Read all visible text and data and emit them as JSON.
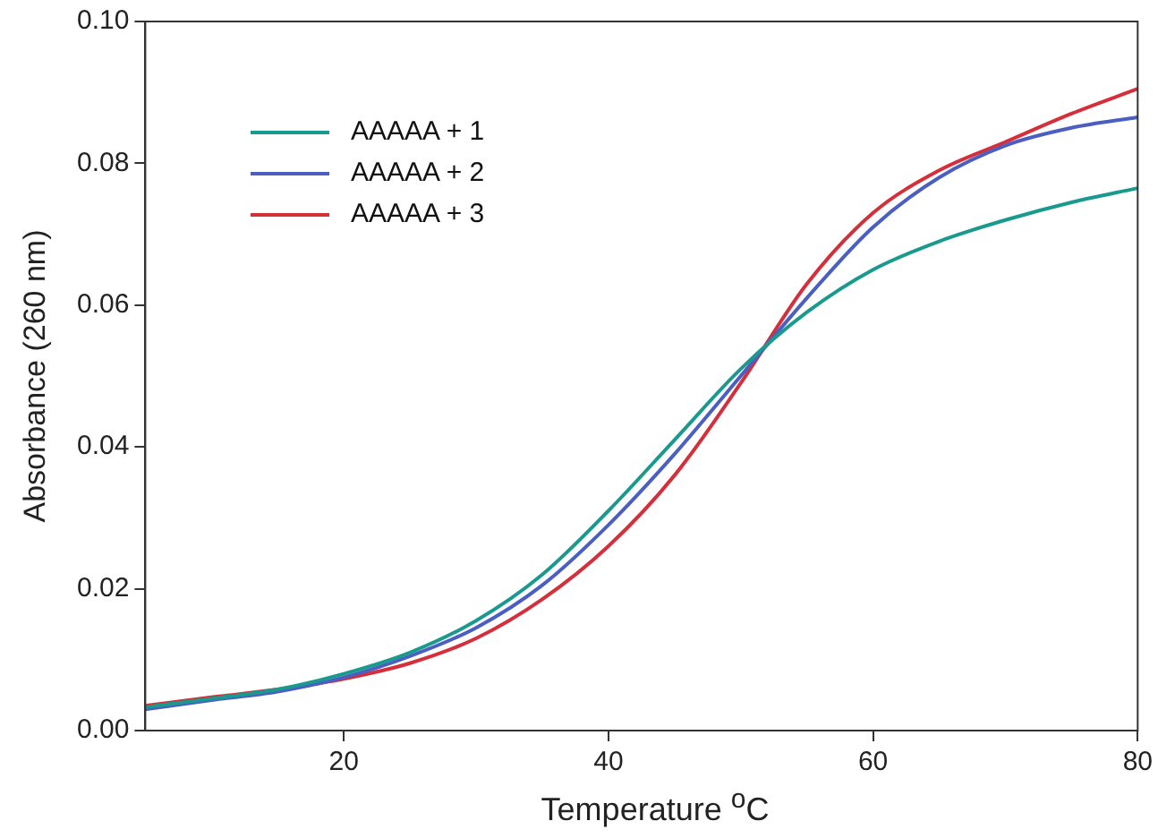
{
  "chart_data": {
    "type": "line",
    "xlabel": "Temperature $^{o}$C",
    "ylabel": "Absorbance (260 nm)",
    "x": [
      5,
      10,
      15,
      20,
      25,
      30,
      35,
      40,
      45,
      50,
      55,
      60,
      65,
      70,
      75,
      80
    ],
    "series": [
      {
        "name": "AAAAA + 1",
        "color": "#1a9a8e",
        "values": [
          0.0033,
          0.0045,
          0.0058,
          0.008,
          0.011,
          0.0155,
          0.022,
          0.031,
          0.041,
          0.051,
          0.059,
          0.065,
          0.069,
          0.072,
          0.0745,
          0.0765
        ]
      },
      {
        "name": "AAAAA + 2",
        "color": "#4a5fc1",
        "values": [
          0.003,
          0.0043,
          0.0055,
          0.0075,
          0.0105,
          0.0145,
          0.0205,
          0.029,
          0.039,
          0.05,
          0.061,
          0.071,
          0.078,
          0.0825,
          0.085,
          0.0865
        ]
      },
      {
        "name": "AAAAA + 3",
        "color": "#d42f3a",
        "values": [
          0.0035,
          0.0047,
          0.0058,
          0.0073,
          0.0095,
          0.013,
          0.0185,
          0.026,
          0.036,
          0.049,
          0.063,
          0.073,
          0.079,
          0.083,
          0.087,
          0.0905
        ]
      }
    ],
    "xlim": [
      5,
      80
    ],
    "xticks": [
      20,
      40,
      60,
      80
    ],
    "ylim": [
      0,
      0.1
    ],
    "yticks": [
      {
        "value": 0,
        "label": "0.00"
      },
      {
        "value": 0.02,
        "label": "0.02"
      },
      {
        "value": 0.04,
        "label": "0.04"
      },
      {
        "value": 0.06,
        "label": "0.06"
      },
      {
        "value": 0.08,
        "label": "0.08"
      },
      {
        "value": 0.1,
        "label": "0.10"
      }
    ],
    "grid": false,
    "legend": "top left",
    "marker": "none",
    "line_style": "solid"
  }
}
